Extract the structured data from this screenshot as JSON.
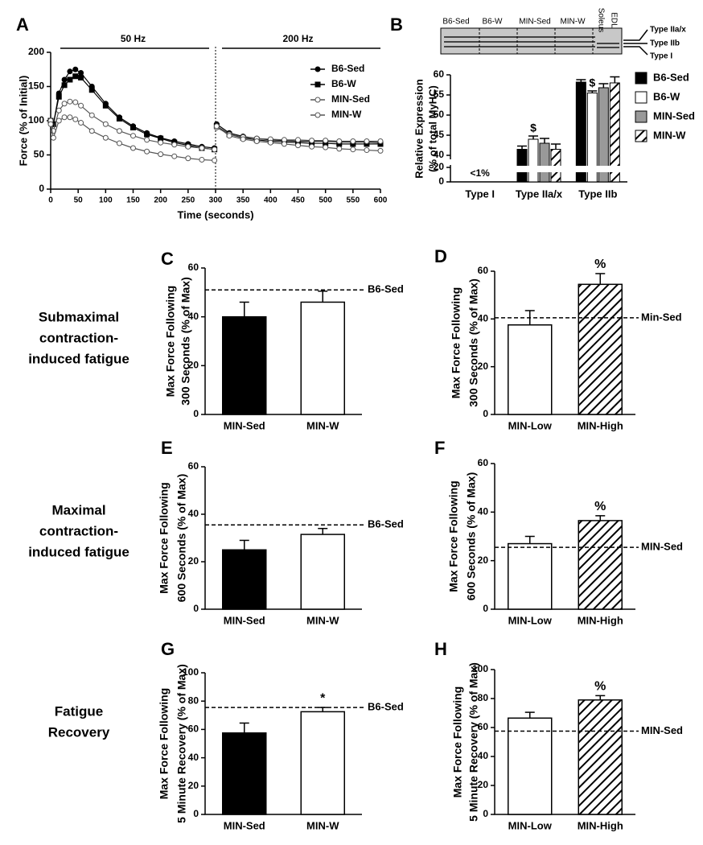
{
  "chart_data": [
    {
      "type": "line",
      "panel": "A",
      "annotations": [
        "50 Hz",
        "200 Hz"
      ],
      "xlabel": "Time (seconds)",
      "ylabel": "Force (% of Initial)",
      "x": [
        0,
        5,
        15,
        25,
        35,
        45,
        55,
        75,
        100,
        125,
        150,
        175,
        200,
        225,
        250,
        275,
        298,
        300,
        302,
        325,
        350,
        375,
        400,
        425,
        450,
        475,
        500,
        525,
        550,
        575,
        600
      ],
      "series": [
        {
          "name": "B6-Sed",
          "color": "#000000",
          "marker": "circle",
          "filled": true,
          "values": [
            100,
            95,
            140,
            160,
            172,
            175,
            170,
            150,
            125,
            105,
            92,
            82,
            75,
            70,
            66,
            62,
            60,
            null,
            95,
            82,
            77,
            74,
            72,
            71,
            70,
            70,
            70,
            69,
            69,
            69,
            68
          ]
        },
        {
          "name": "B6-W",
          "color": "#000000",
          "marker": "square",
          "filled": true,
          "values": [
            100,
            95,
            135,
            152,
            160,
            165,
            163,
            145,
            122,
            103,
            90,
            80,
            74,
            68,
            64,
            60,
            58,
            null,
            92,
            80,
            75,
            72,
            70,
            69,
            68,
            67,
            67,
            66,
            66,
            66,
            66
          ]
        },
        {
          "name": "MIN-Sed",
          "color": "#555555",
          "marker": "circle",
          "filled": false,
          "values": [
            100,
            85,
            115,
            125,
            128,
            127,
            122,
            108,
            95,
            85,
            78,
            72,
            68,
            65,
            62,
            60,
            58,
            null,
            90,
            80,
            76,
            74,
            73,
            72,
            72,
            71,
            71,
            70,
            70,
            70,
            70
          ]
        },
        {
          "name": "MIN-W",
          "color": "#555555",
          "marker": "circle",
          "filled": false,
          "values": [
            95,
            75,
            100,
            105,
            105,
            102,
            97,
            85,
            75,
            67,
            60,
            55,
            51,
            48,
            45,
            43,
            42,
            null,
            92,
            78,
            73,
            70,
            68,
            66,
            64,
            62,
            61,
            59,
            58,
            57,
            56
          ]
        }
      ],
      "xlim": [
        0,
        600
      ],
      "xticks": [
        0,
        50,
        100,
        150,
        200,
        250,
        300,
        350,
        400,
        450,
        500,
        550,
        600
      ],
      "ylim": [
        0,
        200
      ],
      "yticks": [
        0,
        50,
        100,
        150,
        200
      ]
    },
    {
      "type": "grouped-bar",
      "panel": "B",
      "gel": {
        "lanes": [
          "B6-Sed",
          "B6-W",
          "MIN-Sed",
          "MIN-W",
          "Soleus",
          "EDL"
        ],
        "bands": [
          "Type IIa/x",
          "Type IIb",
          "Type I"
        ]
      },
      "ylabel": [
        "Relative Expression",
        "(% of total MyHC)"
      ],
      "categories": [
        "Type I",
        "Type IIa/x",
        "Type IIb"
      ],
      "category_notes": [
        "<1%",
        null,
        null
      ],
      "series": [
        {
          "name": "B6-Sed",
          "color": "#000000",
          "hatch": false,
          "values": [
            null,
            41.5,
            58.2
          ],
          "errors": [
            null,
            0.8,
            0.6
          ],
          "markers": [
            null,
            null,
            null
          ]
        },
        {
          "name": "B6-W",
          "color": "#ffffff",
          "hatch": false,
          "values": [
            null,
            44,
            55.5
          ],
          "errors": [
            null,
            0.8,
            0.5
          ],
          "markers": [
            null,
            "$",
            "$"
          ]
        },
        {
          "name": "MIN-Sed",
          "color": "#999999",
          "hatch": false,
          "values": [
            null,
            43,
            56.8
          ],
          "errors": [
            null,
            1.2,
            1
          ]
        },
        {
          "name": "MIN-W",
          "color": "#ffffff",
          "hatch": true,
          "values": [
            null,
            41.5,
            58
          ],
          "errors": [
            null,
            1.3,
            1.5
          ]
        }
      ],
      "ylim": [
        0,
        60
      ],
      "ybreak": [
        20,
        40
      ],
      "yticks": [
        0,
        20,
        40,
        45,
        50,
        55,
        60
      ]
    },
    {
      "type": "bar",
      "panel": "C",
      "ylabel": [
        "Max Force Following",
        "300 Seconds (% of Max)"
      ],
      "categories": [
        "MIN-Sed",
        "MIN-W"
      ],
      "values": [
        40,
        46
      ],
      "errors": [
        6,
        4.5
      ],
      "colors": [
        "#000000",
        "#ffffff"
      ],
      "hatch": [
        false,
        false
      ],
      "markers": [
        null,
        null
      ],
      "reference": {
        "value": 51,
        "label": "B6-Sed"
      },
      "ylim": [
        0,
        60
      ],
      "yticks": [
        0,
        20,
        40,
        60
      ]
    },
    {
      "type": "bar",
      "panel": "D",
      "ylabel": [
        "Max Force Following",
        "300 Seconds (% of Max)"
      ],
      "categories": [
        "MIN-Low",
        "MIN-High"
      ],
      "values": [
        37.5,
        54.5
      ],
      "errors": [
        6,
        4.5
      ],
      "colors": [
        "#ffffff",
        "#ffffff"
      ],
      "hatch": [
        false,
        true
      ],
      "markers": [
        null,
        "%"
      ],
      "reference": {
        "value": 40.5,
        "label": "Min-Sed"
      },
      "ylim": [
        0,
        60
      ],
      "yticks": [
        0,
        20,
        40,
        60
      ]
    },
    {
      "type": "bar",
      "panel": "E",
      "ylabel": [
        "Max Force Following",
        "600 Seconds (% of Max)"
      ],
      "categories": [
        "MIN-Sed",
        "MIN-W"
      ],
      "values": [
        25,
        31.5
      ],
      "errors": [
        4,
        2.5
      ],
      "colors": [
        "#000000",
        "#ffffff"
      ],
      "hatch": [
        false,
        false
      ],
      "markers": [
        null,
        null
      ],
      "reference": {
        "value": 35.5,
        "label": "B6-Sed"
      },
      "ylim": [
        0,
        60
      ],
      "yticks": [
        0,
        20,
        40,
        60
      ]
    },
    {
      "type": "bar",
      "panel": "F",
      "ylabel": [
        "Max Force Following",
        "600 Seconds (% of Max)"
      ],
      "categories": [
        "MIN-Low",
        "MIN-High"
      ],
      "values": [
        27,
        36.5
      ],
      "errors": [
        3,
        2
      ],
      "colors": [
        "#ffffff",
        "#ffffff"
      ],
      "hatch": [
        false,
        true
      ],
      "markers": [
        null,
        "%"
      ],
      "reference": {
        "value": 25.5,
        "label": "MIN-Sed"
      },
      "ylim": [
        0,
        60
      ],
      "yticks": [
        0,
        20,
        40,
        60
      ]
    },
    {
      "type": "bar",
      "panel": "G",
      "ylabel": [
        "Max Force Following",
        "5 Minute Recovery (% of Max)"
      ],
      "categories": [
        "MIN-Sed",
        "MIN-W"
      ],
      "values": [
        57.5,
        72.5
      ],
      "errors": [
        7,
        3
      ],
      "colors": [
        "#000000",
        "#ffffff"
      ],
      "hatch": [
        false,
        false
      ],
      "markers": [
        null,
        "*"
      ],
      "reference": {
        "value": 75.5,
        "label": "B6-Sed"
      },
      "ylim": [
        0,
        100
      ],
      "yticks": [
        0,
        20,
        40,
        60,
        80,
        100
      ]
    },
    {
      "type": "bar",
      "panel": "H",
      "ylabel": [
        "Max Force Following",
        "5 Minute Recovery (% of Max)"
      ],
      "categories": [
        "MIN-Low",
        "MIN-High"
      ],
      "values": [
        66.5,
        79
      ],
      "errors": [
        4,
        3
      ],
      "colors": [
        "#ffffff",
        "#ffffff"
      ],
      "hatch": [
        false,
        true
      ],
      "markers": [
        null,
        "%"
      ],
      "reference": {
        "value": 57.5,
        "label": "MIN-Sed"
      },
      "ylim": [
        0,
        100
      ],
      "yticks": [
        0,
        20,
        40,
        60,
        80,
        100
      ]
    }
  ],
  "row_labels": [
    [
      "Submaximal",
      "contraction-",
      "induced fatigue"
    ],
    [
      "Maximal",
      "contraction-",
      "induced fatigue"
    ],
    [
      "Fatigue",
      "Recovery"
    ]
  ]
}
